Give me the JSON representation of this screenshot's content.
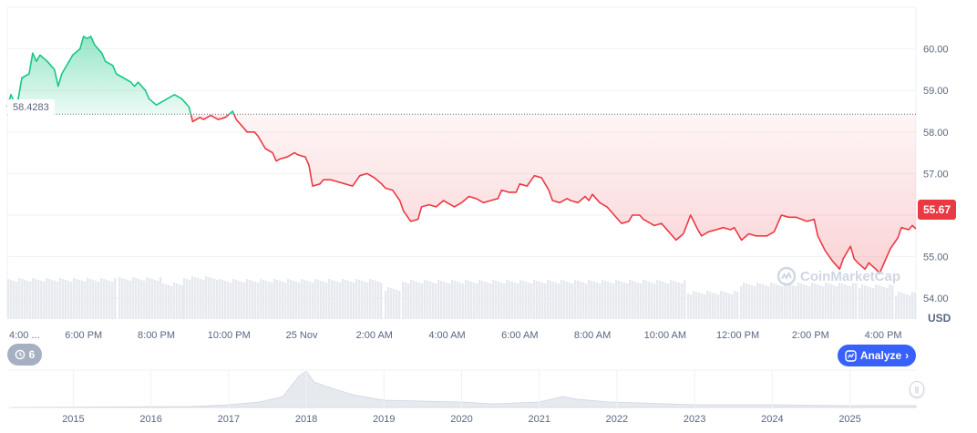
{
  "chart_data": {
    "type": "line",
    "currency": "USD",
    "baseline": 58.4283,
    "baseline_label": "58.4283",
    "last_price": 55.67,
    "last_price_label": "55.67",
    "y_ticks": [
      "60.00",
      "59.00",
      "58.00",
      "57.00",
      "56.00",
      "55.00",
      "54.00"
    ],
    "y_tick_values": [
      60,
      59,
      58,
      57,
      56,
      55,
      54
    ],
    "ylim": [
      53.5,
      61.0
    ],
    "x_ticks": [
      "4:00 ...",
      "6:00 PM",
      "8:00 PM",
      "10:00 PM",
      "25 Nov",
      "2:00 AM",
      "4:00 AM",
      "6:00 AM",
      "8:00 AM",
      "10:00 AM",
      "12:00 PM",
      "2:00 PM",
      "4:00 PM"
    ],
    "x_tick_hours": [
      0,
      2,
      4,
      6,
      8,
      10,
      12,
      14,
      16,
      18,
      20,
      22,
      24
    ],
    "x_range_hours": [
      -0.1,
      24.9
    ],
    "series": [
      {
        "values": [
          [
            -0.1,
            58.6
          ],
          [
            0.0,
            58.9
          ],
          [
            0.1,
            58.7
          ],
          [
            0.2,
            58.8
          ],
          [
            0.3,
            59.3
          ],
          [
            0.5,
            59.4
          ],
          [
            0.6,
            59.9
          ],
          [
            0.7,
            59.7
          ],
          [
            0.8,
            59.85
          ],
          [
            1.0,
            59.7
          ],
          [
            1.2,
            59.5
          ],
          [
            1.3,
            59.1
          ],
          [
            1.4,
            59.4
          ],
          [
            1.6,
            59.7
          ],
          [
            1.7,
            59.85
          ],
          [
            1.9,
            60.0
          ],
          [
            2.0,
            60.3
          ],
          [
            2.1,
            60.25
          ],
          [
            2.2,
            60.3
          ],
          [
            2.3,
            60.1
          ],
          [
            2.5,
            59.9
          ],
          [
            2.6,
            59.7
          ],
          [
            2.8,
            59.6
          ],
          [
            2.9,
            59.4
          ],
          [
            3.1,
            59.3
          ],
          [
            3.3,
            59.2
          ],
          [
            3.4,
            59.1
          ],
          [
            3.5,
            59.2
          ],
          [
            3.7,
            59.0
          ],
          [
            3.8,
            58.8
          ],
          [
            4.0,
            58.65
          ],
          [
            4.1,
            58.7
          ],
          [
            4.3,
            58.8
          ],
          [
            4.5,
            58.9
          ],
          [
            4.7,
            58.8
          ],
          [
            4.9,
            58.6
          ],
          [
            5.0,
            58.25
          ],
          [
            5.2,
            58.35
          ],
          [
            5.3,
            58.3
          ],
          [
            5.5,
            58.4
          ],
          [
            5.7,
            58.3
          ],
          [
            5.9,
            58.35
          ],
          [
            6.1,
            58.5
          ],
          [
            6.2,
            58.3
          ],
          [
            6.4,
            58.1
          ],
          [
            6.5,
            58.0
          ],
          [
            6.7,
            58.0
          ],
          [
            6.8,
            57.9
          ],
          [
            7.0,
            57.6
          ],
          [
            7.2,
            57.5
          ],
          [
            7.3,
            57.3
          ],
          [
            7.4,
            57.35
          ],
          [
            7.6,
            57.4
          ],
          [
            7.8,
            57.5
          ],
          [
            7.9,
            57.45
          ],
          [
            8.1,
            57.4
          ],
          [
            8.2,
            57.2
          ],
          [
            8.3,
            56.7
          ],
          [
            8.5,
            56.75
          ],
          [
            8.6,
            56.85
          ],
          [
            8.8,
            56.85
          ],
          [
            9.0,
            56.8
          ],
          [
            9.2,
            56.75
          ],
          [
            9.4,
            56.7
          ],
          [
            9.6,
            56.95
          ],
          [
            9.8,
            57.0
          ],
          [
            10.0,
            56.9
          ],
          [
            10.2,
            56.75
          ],
          [
            10.3,
            56.65
          ],
          [
            10.5,
            56.6
          ],
          [
            10.7,
            56.35
          ],
          [
            10.8,
            56.1
          ],
          [
            11.0,
            55.85
          ],
          [
            11.2,
            55.9
          ],
          [
            11.3,
            56.2
          ],
          [
            11.5,
            56.25
          ],
          [
            11.7,
            56.2
          ],
          [
            11.9,
            56.35
          ],
          [
            12.0,
            56.3
          ],
          [
            12.2,
            56.2
          ],
          [
            12.4,
            56.3
          ],
          [
            12.6,
            56.45
          ],
          [
            12.8,
            56.4
          ],
          [
            13.0,
            56.3
          ],
          [
            13.2,
            56.35
          ],
          [
            13.4,
            56.4
          ],
          [
            13.5,
            56.6
          ],
          [
            13.7,
            56.55
          ],
          [
            13.9,
            56.55
          ],
          [
            14.0,
            56.75
          ],
          [
            14.2,
            56.7
          ],
          [
            14.4,
            56.95
          ],
          [
            14.6,
            56.9
          ],
          [
            14.7,
            56.75
          ],
          [
            14.8,
            56.6
          ],
          [
            14.9,
            56.35
          ],
          [
            15.1,
            56.3
          ],
          [
            15.3,
            56.4
          ],
          [
            15.4,
            56.35
          ],
          [
            15.6,
            56.3
          ],
          [
            15.8,
            56.45
          ],
          [
            15.9,
            56.35
          ],
          [
            16.0,
            56.5
          ],
          [
            16.2,
            56.3
          ],
          [
            16.4,
            56.2
          ],
          [
            16.6,
            56.0
          ],
          [
            16.8,
            55.8
          ],
          [
            17.0,
            55.85
          ],
          [
            17.1,
            56.0
          ],
          [
            17.3,
            56.0
          ],
          [
            17.4,
            55.9
          ],
          [
            17.5,
            55.85
          ],
          [
            17.7,
            55.75
          ],
          [
            17.9,
            55.8
          ],
          [
            18.1,
            55.6
          ],
          [
            18.3,
            55.4
          ],
          [
            18.5,
            55.55
          ],
          [
            18.7,
            56.0
          ],
          [
            18.9,
            55.65
          ],
          [
            19.0,
            55.5
          ],
          [
            19.2,
            55.6
          ],
          [
            19.4,
            55.65
          ],
          [
            19.6,
            55.7
          ],
          [
            19.8,
            55.65
          ],
          [
            19.9,
            55.7
          ],
          [
            20.1,
            55.4
          ],
          [
            20.3,
            55.55
          ],
          [
            20.5,
            55.5
          ],
          [
            20.8,
            55.5
          ],
          [
            21.0,
            55.6
          ],
          [
            21.2,
            56.0
          ],
          [
            21.4,
            55.95
          ],
          [
            21.6,
            55.95
          ],
          [
            21.9,
            55.85
          ],
          [
            22.1,
            55.9
          ],
          [
            22.2,
            55.5
          ],
          [
            22.4,
            55.15
          ],
          [
            22.6,
            54.9
          ],
          [
            22.8,
            54.7
          ],
          [
            22.9,
            54.95
          ],
          [
            23.1,
            55.25
          ],
          [
            23.2,
            54.95
          ],
          [
            23.3,
            54.85
          ],
          [
            23.5,
            54.7
          ],
          [
            23.6,
            54.85
          ],
          [
            23.8,
            54.7
          ],
          [
            23.9,
            54.6
          ],
          [
            24.0,
            54.8
          ],
          [
            24.2,
            55.2
          ],
          [
            24.4,
            55.45
          ],
          [
            24.5,
            55.7
          ],
          [
            24.7,
            55.65
          ],
          [
            24.8,
            55.75
          ],
          [
            24.9,
            55.67
          ]
        ]
      }
    ],
    "volume_note": "",
    "overview": {
      "x_ticks": [
        "2015",
        "2016",
        "2017",
        "2018",
        "2019",
        "2020",
        "2021",
        "2022",
        "2023",
        "2024",
        "2025"
      ],
      "x_tick_years": [
        2015,
        2016,
        2017,
        2018,
        2019,
        2020,
        2021,
        2022,
        2023,
        2024,
        2025
      ],
      "x_range_years": [
        2014.15,
        2025.85
      ]
    }
  },
  "colors": {
    "up": "#16c784",
    "down": "#ea3943",
    "grid": "#eff2f5",
    "axis_text": "#58667e",
    "volume": "#e6e9ee"
  },
  "watermark_text": "CoinMarketCap",
  "currency_label": "USD",
  "history_count": "6",
  "analyze_label": "Analyze",
  "icons": {
    "history": "history-icon",
    "analyze": "analyze-icon",
    "chevron": "chevron-right-icon",
    "scroll": "scroll-handle-icon"
  }
}
